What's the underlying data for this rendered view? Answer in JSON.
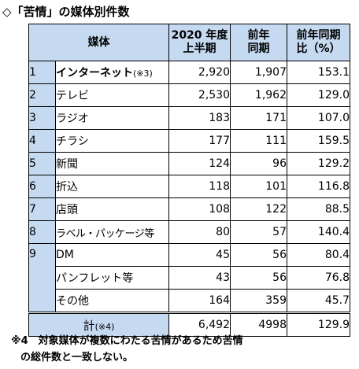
{
  "title": "◇「苦情」の媒体別件数",
  "header": {
    "media": "媒体",
    "col1_line1": "2020 年度",
    "col1_line2": "上半期",
    "col2_line1": "前年",
    "col2_line2": "同期",
    "col3_line1": "前年同期",
    "col3_line2": "比（%）"
  },
  "rows": [
    {
      "num": "1",
      "name": "インターネット",
      "note": "(※3)",
      "v1": "2,920",
      "v2": "1,907",
      "v3": "153.1"
    },
    {
      "num": "2",
      "name": "テレビ",
      "v1": "2,530",
      "v2": "1,962",
      "v3": "129.0"
    },
    {
      "num": "3",
      "name": "ラジオ",
      "v1": "183",
      "v2": "171",
      "v3": "107.0"
    },
    {
      "num": "4",
      "name": "チラシ",
      "v1": "177",
      "v2": "111",
      "v3": "159.5"
    },
    {
      "num": "5",
      "name": "新聞",
      "v1": "124",
      "v2": "96",
      "v3": "129.2"
    },
    {
      "num": "6",
      "name": "折込",
      "v1": "118",
      "v2": "101",
      "v3": "116.8"
    },
    {
      "num": "7",
      "name": "店頭",
      "v1": "108",
      "v2": "122",
      "v3": "88.5"
    },
    {
      "num": "8",
      "name": "ラベル・パッケージ等",
      "v1": "80",
      "v2": "57",
      "v3": "140.4"
    },
    {
      "num": "9",
      "name": "DM",
      "v1": "45",
      "v2": "56",
      "v3": "80.4"
    },
    {
      "num": "",
      "name": "パンフレット等",
      "v1": "43",
      "v2": "56",
      "v3": "76.8"
    },
    {
      "num": "",
      "name": "その他",
      "v1": "164",
      "v2": "359",
      "v3": "45.7"
    }
  ],
  "total": {
    "label": "計",
    "note": "(※4)",
    "v1": "6,492",
    "v2": "4998",
    "v3": "129.9"
  },
  "footnote": {
    "line1": "※4　対象媒体が複数にわたる苦情があるため苦情",
    "line2": "の総件数と一致しない。"
  }
}
